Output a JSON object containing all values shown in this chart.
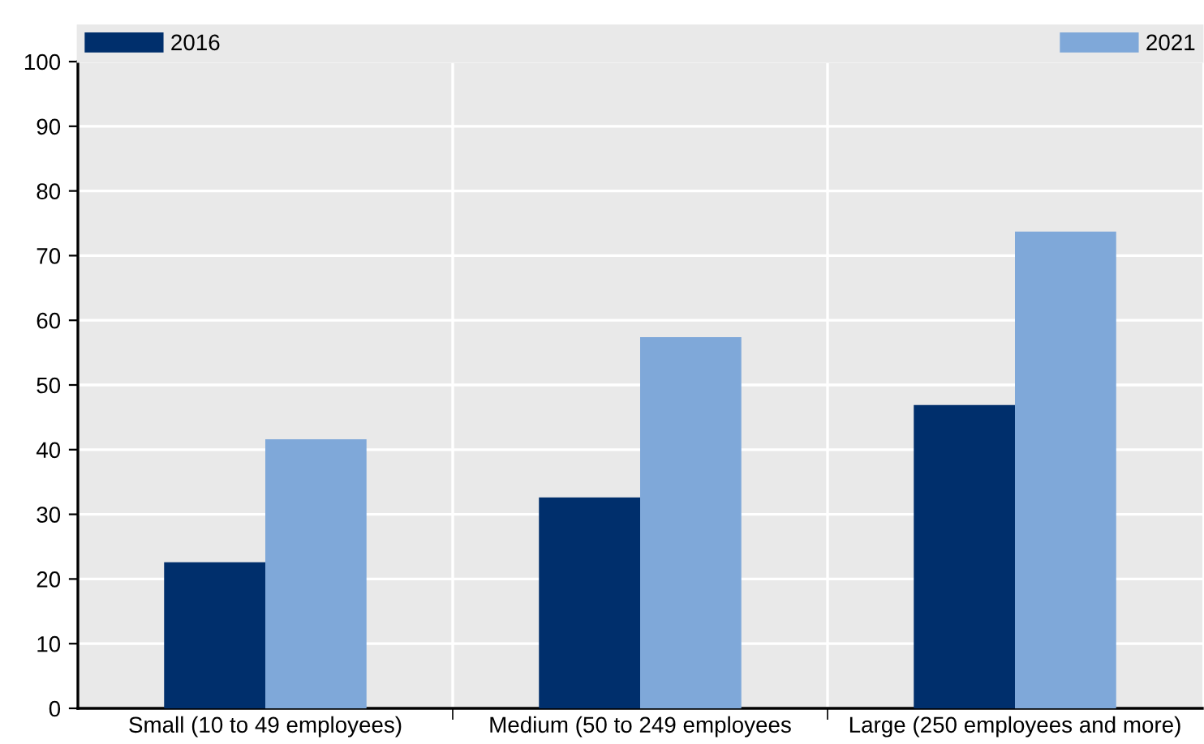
{
  "chart_data": {
    "type": "bar",
    "categories": [
      "Small (10 to 49 employees)",
      "Medium (50 to 249 employees",
      "Large (250 employees and more)"
    ],
    "series": [
      {
        "name": "2016",
        "color": "#002f6c",
        "values": [
          22.6,
          32.6,
          46.9
        ]
      },
      {
        "name": "2021",
        "color": "#7fa8d9",
        "values": [
          41.6,
          57.4,
          73.7
        ]
      }
    ],
    "ylim": [
      0,
      100
    ],
    "yticks": [
      0,
      10,
      20,
      30,
      40,
      50,
      60,
      70,
      80,
      90,
      100
    ],
    "grid": true,
    "legend": "top"
  }
}
